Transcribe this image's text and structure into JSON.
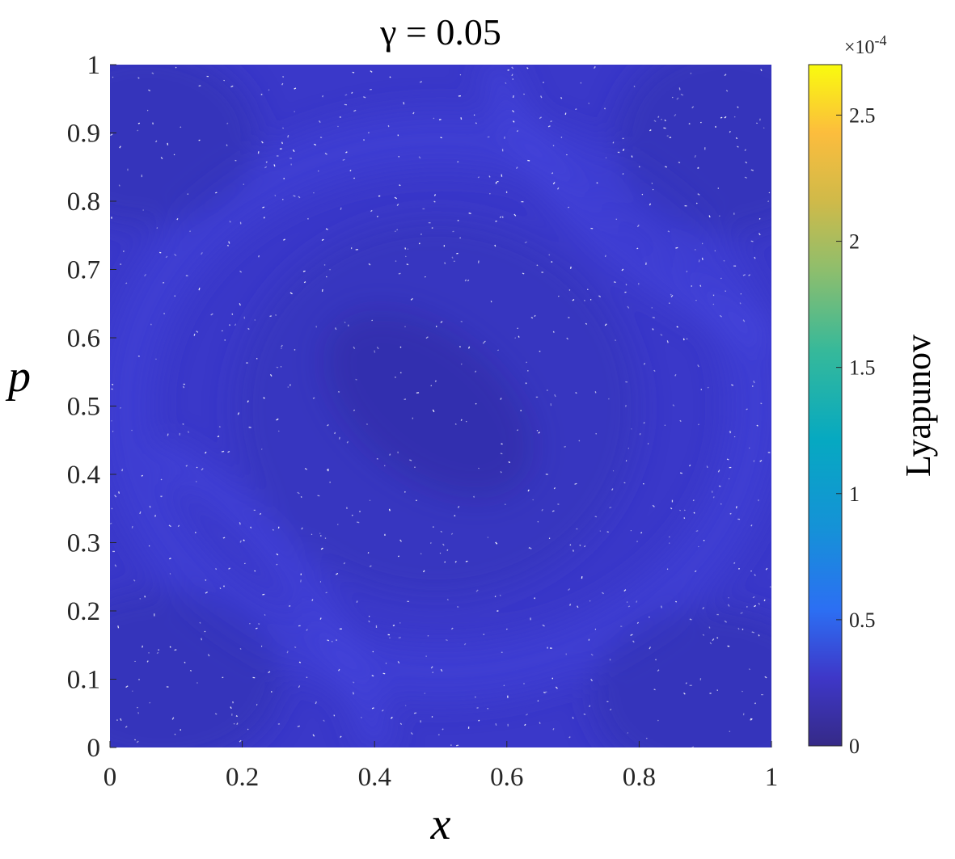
{
  "chart_data": {
    "type": "heatmap",
    "title": "γ = 0.05",
    "xlabel": "x",
    "ylabel": "p",
    "xlim": [
      0,
      1
    ],
    "ylim": [
      0,
      1
    ],
    "xticks": [
      "0",
      "0.2",
      "0.4",
      "0.6",
      "0.8",
      "1"
    ],
    "yticks": [
      "0",
      "0.1",
      "0.2",
      "0.3",
      "0.4",
      "0.5",
      "0.6",
      "0.7",
      "0.8",
      "0.9",
      "1"
    ],
    "colorbar": {
      "label": "Lyapunov",
      "multiplier": "×10",
      "exponent": "-4",
      "range": [
        0,
        2.7
      ],
      "ticks": [
        "0",
        "0.5",
        "1",
        "1.5",
        "2",
        "2.5"
      ],
      "colormap": "parula"
    },
    "field_description_values": {
      "background_level": 0.2,
      "inner_ellipse_level": 0.12,
      "outer_ring_level": 0.26,
      "band_level": 0.3
    },
    "grid": false
  }
}
